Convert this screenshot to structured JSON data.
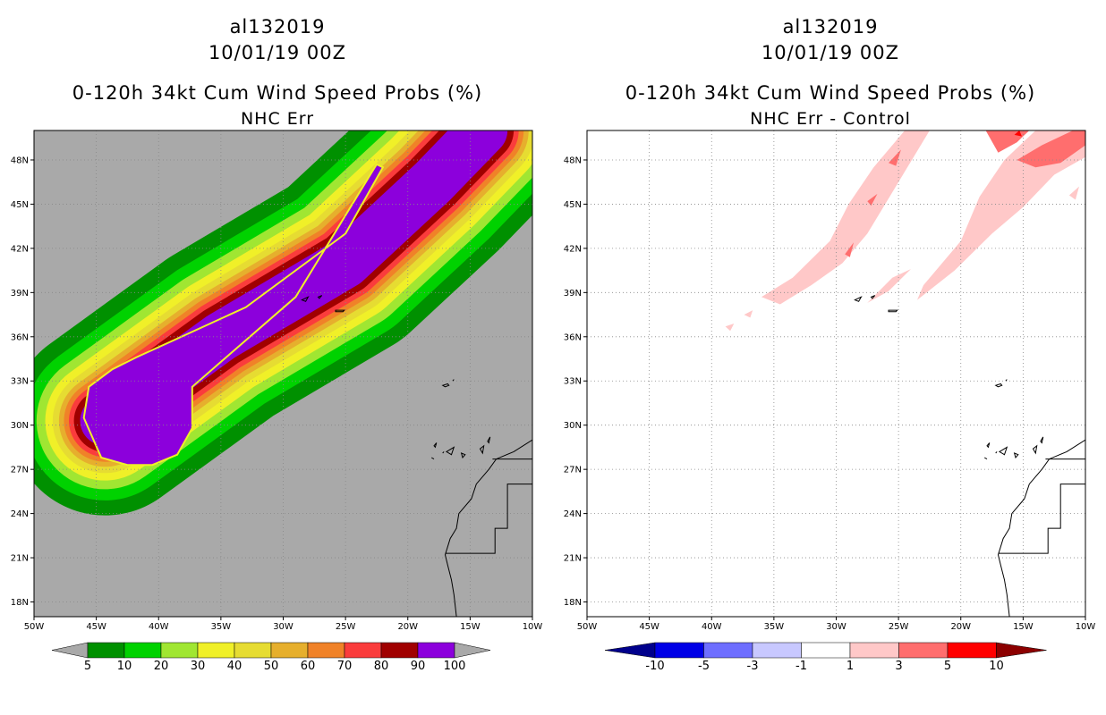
{
  "chart_data": [
    {
      "type": "heatmap",
      "storm": "al132019",
      "date": "10/01/19 00Z",
      "title": "0-120h 34kt Cum Wind Speed Probs (%)",
      "subtitle": "NHC Err",
      "x_ticks": [
        "50W",
        "45W",
        "40W",
        "35W",
        "30W",
        "25W",
        "20W",
        "15W",
        "10W"
      ],
      "y_ticks": [
        "18N",
        "21N",
        "24N",
        "27N",
        "30N",
        "33N",
        "36N",
        "39N",
        "42N",
        "45N",
        "48N"
      ],
      "xlim": [
        -50,
        -10
      ],
      "ylim": [
        17,
        50
      ],
      "background_color": "#a9a9a9",
      "levels": [
        "5",
        "10",
        "20",
        "30",
        "40",
        "50",
        "60",
        "70",
        "80",
        "90",
        "100"
      ],
      "colors": [
        "#009000",
        "#00d200",
        "#a0e632",
        "#f0f028",
        "#e6dc32",
        "#e6af2d",
        "#f08228",
        "#fa3c3c",
        "#a00000",
        "#8c00dc"
      ],
      "track": [
        [
          -44.3,
          30.3
        ],
        [
          -35.0,
          36.0
        ],
        [
          -25.0,
          41.0
        ],
        [
          -18.0,
          46.5
        ],
        [
          -14.0,
          50.0
        ]
      ],
      "band_half_widths_deg": [
        7.6,
        6.4,
        5.5,
        4.8,
        4.2,
        3.7,
        3.3,
        2.9,
        2.5,
        2.0
      ]
    },
    {
      "type": "heatmap",
      "storm": "al132019",
      "date": "10/01/19 00Z",
      "title": "0-120h 34kt Cum Wind Speed Probs (%)",
      "subtitle": "NHC Err - Control",
      "x_ticks": [
        "50W",
        "45W",
        "40W",
        "35W",
        "30W",
        "25W",
        "20W",
        "15W",
        "10W"
      ],
      "y_ticks": [
        "18N",
        "21N",
        "24N",
        "27N",
        "30N",
        "33N",
        "36N",
        "39N",
        "42N",
        "45N",
        "48N"
      ],
      "xlim": [
        -50,
        -10
      ],
      "ylim": [
        17,
        50
      ],
      "levels": [
        "-10",
        "-5",
        "-3",
        "-1",
        "1",
        "3",
        "5",
        "10"
      ],
      "colors": [
        "#00008c",
        "#0000e6",
        "#6e6eff",
        "#c8c8ff",
        "#ffffff",
        "#ffc8c8",
        "#ff6e6e",
        "#ff0000",
        "#8c0000"
      ],
      "difference_values_percent": [
        1,
        3,
        5
      ]
    }
  ]
}
